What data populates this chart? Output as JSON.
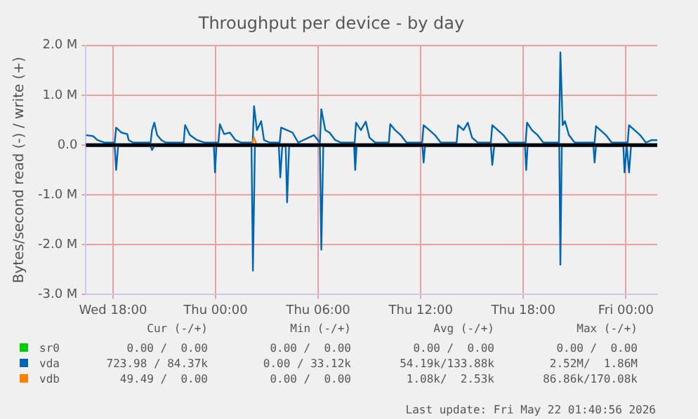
{
  "chart_data": {
    "type": "line",
    "title": "Throughput per device - by day",
    "ylabel": "Bytes/second read (-) / write (+)",
    "xlim": [
      "2026-05-20T16:25",
      "2026-05-22T01:50"
    ],
    "xticks": [
      {
        "value": "2026-05-20T18:00",
        "label": "Wed 18:00"
      },
      {
        "value": "2026-05-21T00:00",
        "label": "Thu 00:00"
      },
      {
        "value": "2026-05-21T06:00",
        "label": "Thu 06:00"
      },
      {
        "value": "2026-05-21T12:00",
        "label": "Thu 12:00"
      },
      {
        "value": "2026-05-21T18:00",
        "label": "Thu 18:00"
      },
      {
        "value": "2026-05-22T00:00",
        "label": "Fri 00:00"
      }
    ],
    "ylim": [
      -3000000,
      2000000
    ],
    "yticks": [
      {
        "value": -3000000,
        "label": "-3.0 M"
      },
      {
        "value": -2000000,
        "label": "-2.0 M"
      },
      {
        "value": -1000000,
        "label": "-1.0 M"
      },
      {
        "value": 0,
        "label": "0.0"
      },
      {
        "value": 1000000,
        "label": "1.0 M"
      },
      {
        "value": 2000000,
        "label": "2.0 M"
      }
    ],
    "grid": true,
    "legend": "bottom",
    "line_style": "solid",
    "ref_lines": [
      {
        "axis": "y",
        "value": 0,
        "color": "#000000"
      }
    ],
    "series": [
      {
        "name": "sr0",
        "color": "#00cc00"
      },
      {
        "name": "vda",
        "color": "#0066b3",
        "x": [
          "2026-05-20T16:25",
          "2026-05-20T16:50",
          "2026-05-20T17:05",
          "2026-05-20T17:30",
          "2026-05-20T18:06",
          "2026-05-20T18:11",
          "2026-05-20T18:30",
          "2026-05-20T18:50",
          "2026-05-20T18:55",
          "2026-05-20T19:10",
          "2026-05-20T20:12",
          "2026-05-20T20:17",
          "2026-05-20T20:25",
          "2026-05-20T20:35",
          "2026-05-20T20:50",
          "2026-05-20T21:05",
          "2026-05-20T22:08",
          "2026-05-20T22:13",
          "2026-05-20T22:30",
          "2026-05-20T22:55",
          "2026-05-20T23:20",
          "2026-05-21T00:10",
          "2026-05-21T00:15",
          "2026-05-21T00:30",
          "2026-05-21T00:50",
          "2026-05-21T01:10",
          "2026-05-21T01:30",
          "2026-05-21T02:10",
          "2026-05-21T02:15",
          "2026-05-21T02:25",
          "2026-05-21T02:40",
          "2026-05-21T02:50",
          "2026-05-21T03:10",
          "2026-05-21T03:45",
          "2026-05-21T03:50",
          "2026-05-21T04:10",
          "2026-05-21T04:30",
          "2026-05-21T04:50",
          "2026-05-21T05:45",
          "2026-05-21T06:06",
          "2026-05-21T06:11",
          "2026-05-21T06:25",
          "2026-05-21T06:40",
          "2026-05-21T07:00",
          "2026-05-21T07:20",
          "2026-05-21T08:08",
          "2026-05-21T08:13",
          "2026-05-21T08:30",
          "2026-05-21T08:47",
          "2026-05-21T09:00",
          "2026-05-21T09:20",
          "2026-05-21T10:08",
          "2026-05-21T10:13",
          "2026-05-21T10:30",
          "2026-05-21T10:50",
          "2026-05-21T11:10",
          "2026-05-21T12:05",
          "2026-05-21T12:10",
          "2026-05-21T12:30",
          "2026-05-21T12:50",
          "2026-05-21T13:10",
          "2026-05-21T14:06",
          "2026-05-21T14:11",
          "2026-05-21T14:30",
          "2026-05-21T14:45",
          "2026-05-21T15:00",
          "2026-05-21T15:20",
          "2026-05-21T16:06",
          "2026-05-21T16:11",
          "2026-05-21T16:30",
          "2026-05-21T16:50",
          "2026-05-21T17:10",
          "2026-05-21T18:08",
          "2026-05-21T18:13",
          "2026-05-21T18:30",
          "2026-05-21T18:50",
          "2026-05-21T19:10",
          "2026-05-21T20:05",
          "2026-05-21T20:10",
          "2026-05-21T20:18",
          "2026-05-21T20:26",
          "2026-05-21T20:40",
          "2026-05-21T21:00",
          "2026-05-21T22:10",
          "2026-05-21T22:15",
          "2026-05-21T22:30",
          "2026-05-21T22:50",
          "2026-05-21T23:10",
          "2026-05-22T00:06",
          "2026-05-22T00:11",
          "2026-05-22T00:30",
          "2026-05-22T00:50",
          "2026-05-22T01:10",
          "2026-05-22T01:30",
          "2026-05-22T01:50"
        ],
        "values": [
          200000,
          180000,
          100000,
          50000,
          50000,
          350000,
          250000,
          220000,
          100000,
          50000,
          50000,
          300000,
          450000,
          200000,
          100000,
          50000,
          50000,
          400000,
          200000,
          100000,
          50000,
          50000,
          420000,
          220000,
          250000,
          100000,
          50000,
          50000,
          780000,
          300000,
          480000,
          100000,
          50000,
          50000,
          350000,
          300000,
          250000,
          50000,
          200000,
          50000,
          720000,
          300000,
          250000,
          100000,
          50000,
          50000,
          450000,
          300000,
          470000,
          150000,
          50000,
          50000,
          420000,
          300000,
          200000,
          50000,
          50000,
          400000,
          300000,
          200000,
          50000,
          50000,
          400000,
          300000,
          450000,
          150000,
          50000,
          50000,
          400000,
          300000,
          200000,
          50000,
          50000,
          450000,
          300000,
          200000,
          50000,
          50000,
          1860000,
          400000,
          480000,
          200000,
          50000,
          50000,
          380000,
          300000,
          200000,
          50000,
          50000,
          400000,
          300000,
          200000,
          50000,
          100000,
          100000
        ]
      },
      {
        "color": "#0066b3",
        "x": [
          "2026-05-20T16:25",
          "2026-05-20T18:06",
          "2026-05-20T18:11",
          "2026-05-20T18:18",
          "2026-05-20T20:12",
          "2026-05-20T20:17",
          "2026-05-20T20:24",
          "2026-05-20T23:54",
          "2026-05-20T23:58",
          "2026-05-21T00:03",
          "2026-05-21T02:06",
          "2026-05-21T02:11",
          "2026-05-21T02:18",
          "2026-05-21T03:42",
          "2026-05-21T03:47",
          "2026-05-21T03:54",
          "2026-05-21T04:06",
          "2026-05-21T04:11",
          "2026-05-21T04:18",
          "2026-05-21T06:06",
          "2026-05-21T06:11",
          "2026-05-21T06:18",
          "2026-05-21T08:06",
          "2026-05-21T08:10",
          "2026-05-21T08:15",
          "2026-05-21T12:06",
          "2026-05-21T12:10",
          "2026-05-21T12:15",
          "2026-05-21T16:06",
          "2026-05-21T16:11",
          "2026-05-21T16:18",
          "2026-05-21T18:06",
          "2026-05-21T18:10",
          "2026-05-21T18:15",
          "2026-05-21T20:06",
          "2026-05-21T20:10",
          "2026-05-21T20:15",
          "2026-05-21T22:06",
          "2026-05-21T22:10",
          "2026-05-21T22:15",
          "2026-05-21T23:51",
          "2026-05-21T23:55",
          "2026-05-22T00:03",
          "2026-05-22T00:11",
          "2026-05-22T00:18",
          "2026-05-22T01:50"
        ],
        "values": [
          -20000,
          -20000,
          -500000,
          -20000,
          -20000,
          -100000,
          -20000,
          -20000,
          -550000,
          -20000,
          -20000,
          -2520000,
          -20000,
          -20000,
          -650000,
          -20000,
          -20000,
          -1150000,
          -20000,
          -20000,
          -2100000,
          -20000,
          -20000,
          -500000,
          -20000,
          -20000,
          -350000,
          -20000,
          -20000,
          -400000,
          -20000,
          -20000,
          -500000,
          -20000,
          -20000,
          -2400000,
          -20000,
          -20000,
          -350000,
          -20000,
          -20000,
          -550000,
          -20000,
          -550000,
          -20000,
          -20000
        ]
      },
      {
        "name": "vdb",
        "color": "#ff8000",
        "x": [
          "2026-05-21T02:06",
          "2026-05-21T02:15",
          "2026-05-21T02:24"
        ],
        "values": [
          0,
          150000,
          0
        ]
      }
    ],
    "annotations": [
      "Cur (-/+)",
      "Min (-/+)",
      "Avg (-/+)",
      "Max (-/+)",
      "0.00 /  0.00",
      "0.00 /  0.00",
      "0.00 /  0.00",
      "0.00 /  0.00",
      "723.98 / 84.37k",
      "0.00 / 33.12k",
      "54.19k/133.88k",
      "2.52M/  1.86M",
      "49.49 /  0.00",
      "0.00 /  0.00",
      "1.08k/  2.53k",
      "86.86k/170.08k",
      "Last update: Fri May 22 01:40:56 2026"
    ]
  }
}
